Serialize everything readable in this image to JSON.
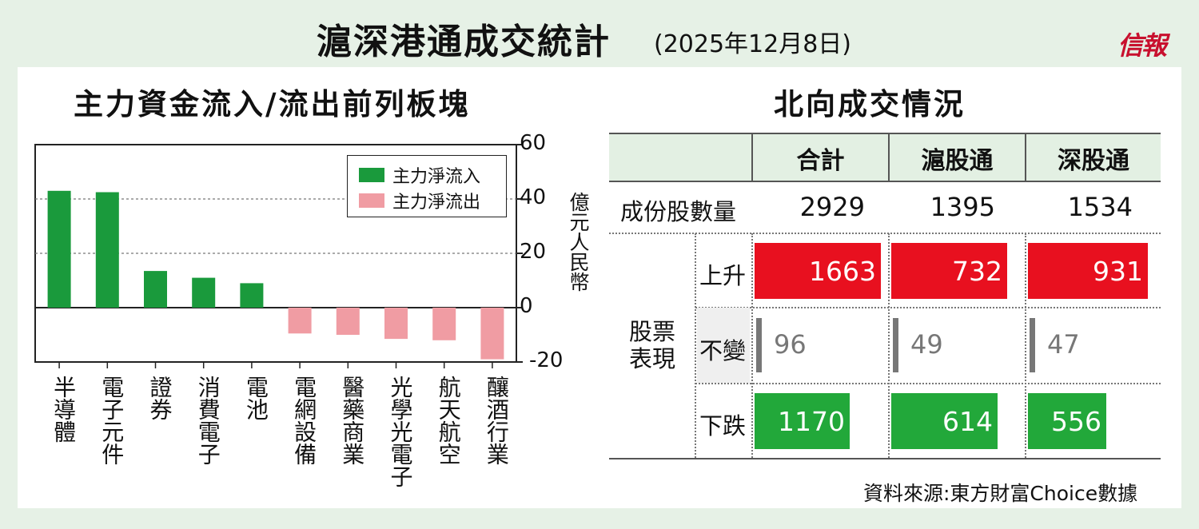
{
  "header": {
    "title": "滬深港通成交統計",
    "date": "(2025年12月8日)",
    "logo": "信報"
  },
  "chart_section": {
    "title": "主力資金流入/流出前列板塊"
  },
  "chart_data": {
    "type": "bar",
    "categories": [
      "半導體",
      "電子元件",
      "證券",
      "消費電子",
      "電池",
      "電網設備",
      "醫藥商業",
      "光學光電子",
      "航天航空",
      "釀酒行業"
    ],
    "values": [
      43,
      42.5,
      13.5,
      11,
      9,
      -9.5,
      -10,
      -11.5,
      -12,
      -19
    ],
    "ylim": [
      -20,
      60
    ],
    "yticks": [
      -20,
      0,
      20,
      40,
      60
    ],
    "ytick_labels": [
      "-20",
      "0",
      "20",
      "40",
      "60"
    ],
    "ylabel": "億元人民幣",
    "legend": [
      "主力淨流入",
      "主力淨流出"
    ],
    "legend_placement": "top-right",
    "grid": "dotted at 20 and 40",
    "colors": {
      "inflow": "#1a9a3c",
      "outflow": "#f09ca3"
    }
  },
  "table_section": {
    "title": "北向成交情況",
    "columns": [
      "合計",
      "滬股通",
      "深股通"
    ],
    "constituents_label": "成份股數量",
    "constituents": [
      "2929",
      "1395",
      "1534"
    ],
    "performance_label": "股票表現",
    "rows": [
      {
        "label": "上升",
        "values": [
          "1663",
          "732",
          "931"
        ],
        "fractions": [
          1.0,
          0.92,
          0.95
        ],
        "color": "#e8101f"
      },
      {
        "label": "不變",
        "values": [
          "96",
          "49",
          "47"
        ],
        "color": "#777777"
      },
      {
        "label": "下跌",
        "values": [
          "1170",
          "614",
          "556"
        ],
        "fractions": [
          0.75,
          0.84,
          0.62
        ],
        "color": "#22a83a"
      }
    ]
  },
  "source": "資料來源:東方財富Choice數據"
}
